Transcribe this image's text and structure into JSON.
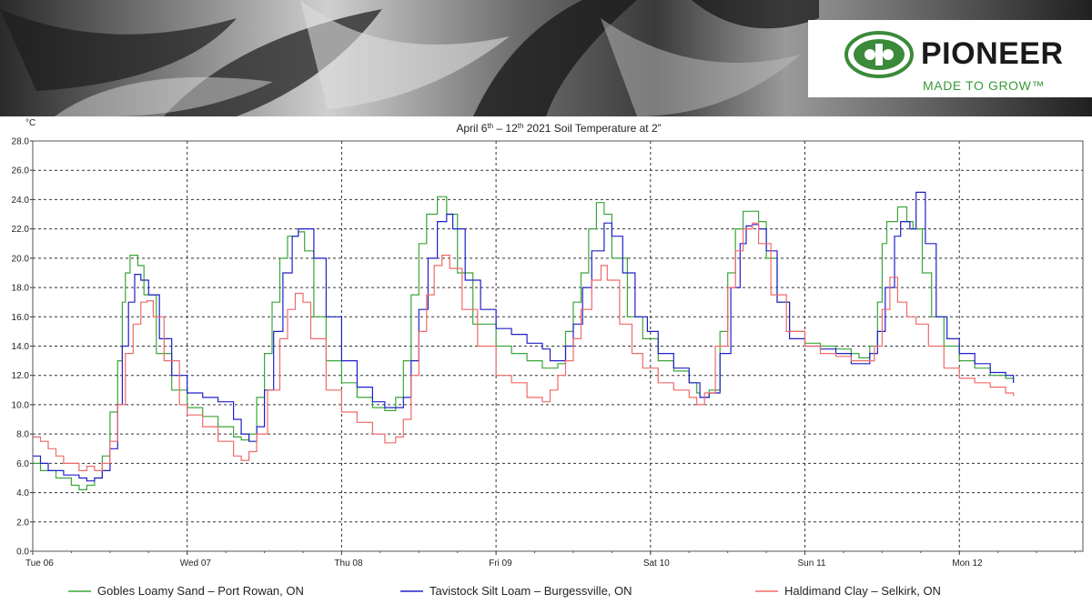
{
  "brand": {
    "name": "PIONEER",
    "tagline": "MADE TO GROW™",
    "green": "#3a8a3a",
    "logo_icon": "pioneer-oval-logo"
  },
  "chart_data": {
    "type": "line",
    "title": "April 6th – 12th 2021 Soil Temperature at 2”",
    "title_parts": [
      "April 6",
      "th",
      " – 12",
      "th",
      " 2021 Soil Temperature at 2”"
    ],
    "ylabel": "°C",
    "ylim": [
      0,
      28
    ],
    "yticks": [
      "0.0",
      "2.0",
      "4.0",
      "6.0",
      "8.0",
      "10.0",
      "12.0",
      "14.0",
      "16.0",
      "18.0",
      "20.0",
      "22.0",
      "24.0",
      "26.0",
      "28.0"
    ],
    "xlim": [
      0,
      6.8
    ],
    "xticks": [
      {
        "x": 0,
        "label": "Tue 06"
      },
      {
        "x": 1,
        "label": "Wed 07"
      },
      {
        "x": 2,
        "label": "Thu 08"
      },
      {
        "x": 3,
        "label": "Fri 09"
      },
      {
        "x": 4,
        "label": "Sat 10"
      },
      {
        "x": 5,
        "label": "Sun 11"
      },
      {
        "x": 6,
        "label": "Mon 12"
      }
    ],
    "grid": true,
    "legend_position": "bottom",
    "series": [
      {
        "name": "Gobles Loamy Sand – Port Rowan, ON",
        "color": "#3aa63a",
        "points": [
          [
            0,
            6
          ],
          [
            0.05,
            5.5
          ],
          [
            0.15,
            5
          ],
          [
            0.25,
            4.5
          ],
          [
            0.3,
            4.2
          ],
          [
            0.35,
            4.5
          ],
          [
            0.4,
            5
          ],
          [
            0.45,
            6.5
          ],
          [
            0.5,
            9.5
          ],
          [
            0.55,
            13
          ],
          [
            0.58,
            17
          ],
          [
            0.6,
            19
          ],
          [
            0.63,
            20.2
          ],
          [
            0.68,
            19.5
          ],
          [
            0.72,
            17.5
          ],
          [
            0.8,
            13.5
          ],
          [
            0.9,
            11
          ],
          [
            1,
            9.8
          ],
          [
            1.1,
            9.2
          ],
          [
            1.2,
            8.5
          ],
          [
            1.3,
            7.8
          ],
          [
            1.35,
            7.6
          ],
          [
            1.4,
            8
          ],
          [
            1.45,
            10.5
          ],
          [
            1.5,
            13.5
          ],
          [
            1.55,
            17
          ],
          [
            1.6,
            20
          ],
          [
            1.65,
            21.5
          ],
          [
            1.72,
            21.8
          ],
          [
            1.76,
            20.5
          ],
          [
            1.82,
            16
          ],
          [
            1.9,
            13
          ],
          [
            2,
            11.5
          ],
          [
            2.1,
            10.5
          ],
          [
            2.2,
            9.8
          ],
          [
            2.28,
            9.6
          ],
          [
            2.35,
            10.5
          ],
          [
            2.4,
            13
          ],
          [
            2.45,
            17.5
          ],
          [
            2.5,
            21
          ],
          [
            2.55,
            23
          ],
          [
            2.62,
            24.2
          ],
          [
            2.68,
            23
          ],
          [
            2.75,
            19
          ],
          [
            2.85,
            15.5
          ],
          [
            3,
            14
          ],
          [
            3.1,
            13.5
          ],
          [
            3.2,
            13
          ],
          [
            3.3,
            12.5
          ],
          [
            3.4,
            12.8
          ],
          [
            3.45,
            15
          ],
          [
            3.5,
            17
          ],
          [
            3.55,
            19
          ],
          [
            3.6,
            22
          ],
          [
            3.65,
            23.8
          ],
          [
            3.7,
            23
          ],
          [
            3.75,
            20
          ],
          [
            3.85,
            16
          ],
          [
            3.95,
            14.5
          ],
          [
            4.05,
            13
          ],
          [
            4.15,
            12.3
          ],
          [
            4.25,
            11.5
          ],
          [
            4.3,
            10.8
          ],
          [
            4.32,
            10.5
          ],
          [
            4.38,
            11
          ],
          [
            4.45,
            15
          ],
          [
            4.5,
            19
          ],
          [
            4.55,
            22
          ],
          [
            4.6,
            23.2
          ],
          [
            4.65,
            23.2
          ],
          [
            4.7,
            22.5
          ],
          [
            4.75,
            20
          ],
          [
            4.82,
            17
          ],
          [
            4.9,
            15
          ],
          [
            5,
            14.2
          ],
          [
            5.1,
            14
          ],
          [
            5.2,
            13.8
          ],
          [
            5.3,
            13.5
          ],
          [
            5.35,
            13.2
          ],
          [
            5.42,
            14
          ],
          [
            5.47,
            17
          ],
          [
            5.5,
            21
          ],
          [
            5.53,
            22.5
          ],
          [
            5.6,
            23.5
          ],
          [
            5.66,
            22.5
          ],
          [
            5.7,
            22
          ],
          [
            5.76,
            19
          ],
          [
            5.82,
            16
          ],
          [
            5.9,
            14
          ],
          [
            6,
            13
          ],
          [
            6.1,
            12.5
          ],
          [
            6.2,
            12
          ],
          [
            6.3,
            11.8
          ],
          [
            6.35,
            11.5
          ]
        ]
      },
      {
        "name": "Tavistock Silt Loam – Burgessville, ON",
        "color": "#2020c8",
        "points": [
          [
            0,
            6.5
          ],
          [
            0.05,
            6
          ],
          [
            0.1,
            5.5
          ],
          [
            0.2,
            5.2
          ],
          [
            0.3,
            5
          ],
          [
            0.35,
            4.8
          ],
          [
            0.4,
            5
          ],
          [
            0.45,
            5.5
          ],
          [
            0.5,
            7
          ],
          [
            0.55,
            10
          ],
          [
            0.58,
            14
          ],
          [
            0.62,
            17
          ],
          [
            0.66,
            18.9
          ],
          [
            0.7,
            18.5
          ],
          [
            0.75,
            17.5
          ],
          [
            0.82,
            14.5
          ],
          [
            0.9,
            12
          ],
          [
            1,
            10.8
          ],
          [
            1.1,
            10.5
          ],
          [
            1.2,
            10.2
          ],
          [
            1.3,
            9
          ],
          [
            1.35,
            8
          ],
          [
            1.4,
            7.5
          ],
          [
            1.45,
            8.5
          ],
          [
            1.5,
            11
          ],
          [
            1.56,
            15
          ],
          [
            1.62,
            19
          ],
          [
            1.68,
            21.5
          ],
          [
            1.72,
            22
          ],
          [
            1.76,
            22
          ],
          [
            1.82,
            20
          ],
          [
            1.9,
            16
          ],
          [
            2,
            13
          ],
          [
            2.1,
            11.2
          ],
          [
            2.2,
            10.2
          ],
          [
            2.28,
            9.8
          ],
          [
            2.35,
            9.8
          ],
          [
            2.4,
            10.5
          ],
          [
            2.45,
            13
          ],
          [
            2.5,
            16.5
          ],
          [
            2.56,
            20
          ],
          [
            2.62,
            22.5
          ],
          [
            2.68,
            23
          ],
          [
            2.72,
            22
          ],
          [
            2.8,
            18.5
          ],
          [
            2.9,
            16.5
          ],
          [
            3,
            15.2
          ],
          [
            3.1,
            14.8
          ],
          [
            3.2,
            14.2
          ],
          [
            3.3,
            13.8
          ],
          [
            3.35,
            13
          ],
          [
            3.4,
            13
          ],
          [
            3.45,
            14
          ],
          [
            3.5,
            15.5
          ],
          [
            3.56,
            18
          ],
          [
            3.62,
            20.5
          ],
          [
            3.7,
            22.4
          ],
          [
            3.75,
            21.5
          ],
          [
            3.82,
            19
          ],
          [
            3.9,
            16
          ],
          [
            3.98,
            15
          ],
          [
            4.05,
            13.5
          ],
          [
            4.15,
            12.5
          ],
          [
            4.25,
            11.5
          ],
          [
            4.32,
            10.5
          ],
          [
            4.38,
            10.8
          ],
          [
            4.45,
            13.5
          ],
          [
            4.52,
            18
          ],
          [
            4.58,
            21
          ],
          [
            4.62,
            22.2
          ],
          [
            4.66,
            22.3
          ],
          [
            4.7,
            22
          ],
          [
            4.75,
            20.5
          ],
          [
            4.82,
            17
          ],
          [
            4.9,
            14.5
          ],
          [
            5,
            14
          ],
          [
            5.1,
            13.8
          ],
          [
            5.2,
            13.5
          ],
          [
            5.3,
            12.8
          ],
          [
            5.38,
            12.8
          ],
          [
            5.42,
            13.5
          ],
          [
            5.47,
            15
          ],
          [
            5.52,
            18
          ],
          [
            5.58,
            21.5
          ],
          [
            5.62,
            22.5
          ],
          [
            5.68,
            22
          ],
          [
            5.72,
            24.5
          ],
          [
            5.78,
            21
          ],
          [
            5.85,
            16
          ],
          [
            5.92,
            14.5
          ],
          [
            6,
            13.5
          ],
          [
            6.1,
            12.8
          ],
          [
            6.2,
            12.2
          ],
          [
            6.3,
            12
          ],
          [
            6.35,
            11.5
          ]
        ]
      },
      {
        "name": "Haldimand Clay – Selkirk, ON",
        "color": "#f06a6a",
        "points": [
          [
            0,
            7.8
          ],
          [
            0.05,
            7.5
          ],
          [
            0.1,
            7
          ],
          [
            0.15,
            6.5
          ],
          [
            0.2,
            6
          ],
          [
            0.3,
            5.5
          ],
          [
            0.35,
            5.8
          ],
          [
            0.4,
            5.5
          ],
          [
            0.45,
            6
          ],
          [
            0.5,
            7.5
          ],
          [
            0.55,
            10
          ],
          [
            0.6,
            13.5
          ],
          [
            0.65,
            15.5
          ],
          [
            0.7,
            17
          ],
          [
            0.74,
            17.1
          ],
          [
            0.78,
            16
          ],
          [
            0.85,
            13
          ],
          [
            0.95,
            10
          ],
          [
            1,
            9.3
          ],
          [
            1.1,
            8.5
          ],
          [
            1.2,
            7.5
          ],
          [
            1.3,
            6.5
          ],
          [
            1.35,
            6.2
          ],
          [
            1.4,
            6.8
          ],
          [
            1.45,
            8
          ],
          [
            1.52,
            11
          ],
          [
            1.6,
            14.5
          ],
          [
            1.65,
            16.5
          ],
          [
            1.7,
            17.6
          ],
          [
            1.75,
            17
          ],
          [
            1.8,
            14.5
          ],
          [
            1.9,
            11
          ],
          [
            2,
            9.5
          ],
          [
            2.1,
            8.8
          ],
          [
            2.2,
            8
          ],
          [
            2.28,
            7.4
          ],
          [
            2.35,
            7.8
          ],
          [
            2.4,
            9
          ],
          [
            2.45,
            12
          ],
          [
            2.5,
            15
          ],
          [
            2.55,
            17.5
          ],
          [
            2.6,
            19.5
          ],
          [
            2.65,
            20.2
          ],
          [
            2.7,
            19.3
          ],
          [
            2.78,
            16.5
          ],
          [
            2.88,
            14
          ],
          [
            3,
            12
          ],
          [
            3.1,
            11.5
          ],
          [
            3.2,
            10.5
          ],
          [
            3.3,
            10.2
          ],
          [
            3.35,
            11
          ],
          [
            3.4,
            12
          ],
          [
            3.45,
            13
          ],
          [
            3.5,
            14.5
          ],
          [
            3.55,
            16.5
          ],
          [
            3.62,
            18.5
          ],
          [
            3.68,
            19.5
          ],
          [
            3.72,
            18.5
          ],
          [
            3.8,
            15.5
          ],
          [
            3.88,
            13.5
          ],
          [
            3.95,
            12.5
          ],
          [
            4.05,
            11.5
          ],
          [
            4.15,
            11
          ],
          [
            4.25,
            10.5
          ],
          [
            4.3,
            10
          ],
          [
            4.35,
            10.8
          ],
          [
            4.42,
            14
          ],
          [
            4.5,
            18
          ],
          [
            4.55,
            20.5
          ],
          [
            4.6,
            22
          ],
          [
            4.66,
            22.4
          ],
          [
            4.7,
            21
          ],
          [
            4.78,
            17.5
          ],
          [
            4.88,
            15
          ],
          [
            5,
            14
          ],
          [
            5.1,
            13.5
          ],
          [
            5.2,
            13.3
          ],
          [
            5.3,
            13
          ],
          [
            5.4,
            13
          ],
          [
            5.45,
            14
          ],
          [
            5.5,
            16.5
          ],
          [
            5.55,
            18.7
          ],
          [
            5.6,
            17
          ],
          [
            5.66,
            16
          ],
          [
            5.72,
            15.5
          ],
          [
            5.8,
            14
          ],
          [
            5.9,
            12.5
          ],
          [
            6,
            11.8
          ],
          [
            6.1,
            11.5
          ],
          [
            6.2,
            11.2
          ],
          [
            6.3,
            10.8
          ],
          [
            6.35,
            10.6
          ]
        ]
      }
    ]
  }
}
